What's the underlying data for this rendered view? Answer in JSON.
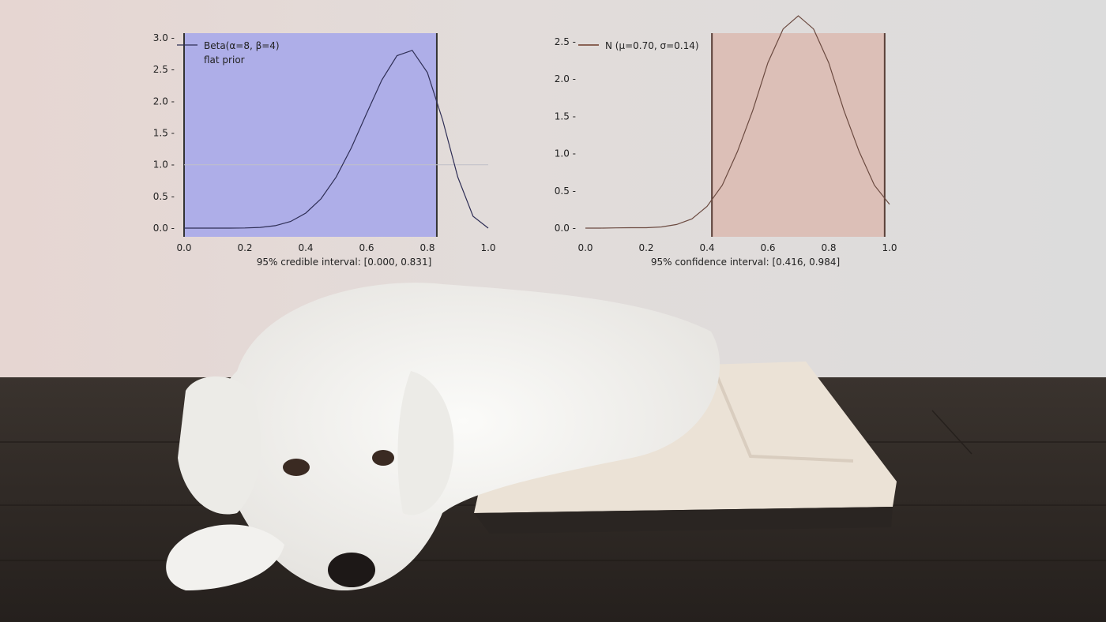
{
  "colors": {
    "background_wall": "#dedede",
    "wall_left_tint": "#e6d7d3",
    "floor": "#2e2824",
    "mat": "#ebe2d6",
    "dog": "#f3f2ef",
    "credible_shade": "#aeaee8",
    "confidence_shade": "#dcbfb7",
    "beta_line": "#2e2e55",
    "normal_line": "#6b4a40",
    "axis_text": "#222222"
  },
  "chart_data": [
    {
      "type": "line",
      "title": "",
      "xlabel": "95% credible interval: [0.000, 0.831]",
      "ylabel": "",
      "xlim": [
        0.0,
        1.0
      ],
      "ylim": [
        0.0,
        3.0
      ],
      "xticks": [
        "0.0",
        "0.2",
        "0.4",
        "0.6",
        "0.8",
        "1.0"
      ],
      "yticks": [
        "0.0 -",
        "0.5 -",
        "1.0 -",
        "1.5 -",
        "2.0 -",
        "2.5 -",
        "3.0 -"
      ],
      "xtick_values": [
        0.0,
        0.2,
        0.4,
        0.6,
        0.8,
        1.0
      ],
      "ytick_values": [
        0.0,
        0.5,
        1.0,
        1.5,
        2.0,
        2.5,
        3.0
      ],
      "shaded_interval": [
        0.0,
        0.831
      ],
      "legend": "top-left",
      "series": [
        {
          "name": "Beta(α=8, β=4)",
          "x": [
            0.0,
            0.05,
            0.1,
            0.15,
            0.2,
            0.25,
            0.3,
            0.35,
            0.4,
            0.45,
            0.5,
            0.55,
            0.6,
            0.65,
            0.7,
            0.75,
            0.8,
            0.85,
            0.9,
            0.95,
            1.0
          ],
          "y": [
            0.0,
            0.0,
            0.0,
            0.0,
            0.002,
            0.011,
            0.038,
            0.105,
            0.236,
            0.462,
            0.806,
            1.268,
            1.806,
            2.335,
            2.72,
            2.803,
            2.454,
            1.706,
            0.804,
            0.187,
            0.0
          ]
        },
        {
          "name": "flat prior",
          "x": [
            0.0,
            1.0
          ],
          "y": [
            1.0,
            1.0
          ]
        }
      ]
    },
    {
      "type": "line",
      "title": "",
      "xlabel": "95% confidence interval: [0.416, 0.984]",
      "ylabel": "",
      "xlim": [
        0.0,
        1.0
      ],
      "ylim": [
        0.0,
        2.8
      ],
      "xticks": [
        "0.0",
        "0.2",
        "0.4",
        "0.6",
        "0.8",
        "1.0"
      ],
      "yticks": [
        "0.0 -",
        "0.5 -",
        "1.0 -",
        "1.5 -",
        "2.0 -",
        "2.5 -"
      ],
      "xtick_values": [
        0.0,
        0.2,
        0.4,
        0.6,
        0.8,
        1.0
      ],
      "ytick_values": [
        0.0,
        0.5,
        1.0,
        1.5,
        2.0,
        2.5
      ],
      "shaded_interval": [
        0.416,
        0.984
      ],
      "legend": "top-left",
      "series": [
        {
          "name": "N (μ=0.70, σ=0.14)",
          "x": [
            0.0,
            0.05,
            0.1,
            0.15,
            0.2,
            0.25,
            0.3,
            0.35,
            0.4,
            0.45,
            0.5,
            0.55,
            0.6,
            0.65,
            0.7,
            0.75,
            0.8,
            0.85,
            0.9,
            0.95,
            1.0
          ],
          "y": [
            0.0,
            0.0,
            0.003,
            0.005,
            0.005,
            0.016,
            0.049,
            0.124,
            0.291,
            0.576,
            1.029,
            1.577,
            2.219,
            2.673,
            2.85,
            2.673,
            2.219,
            1.577,
            1.029,
            0.576,
            0.319
          ]
        }
      ]
    }
  ]
}
